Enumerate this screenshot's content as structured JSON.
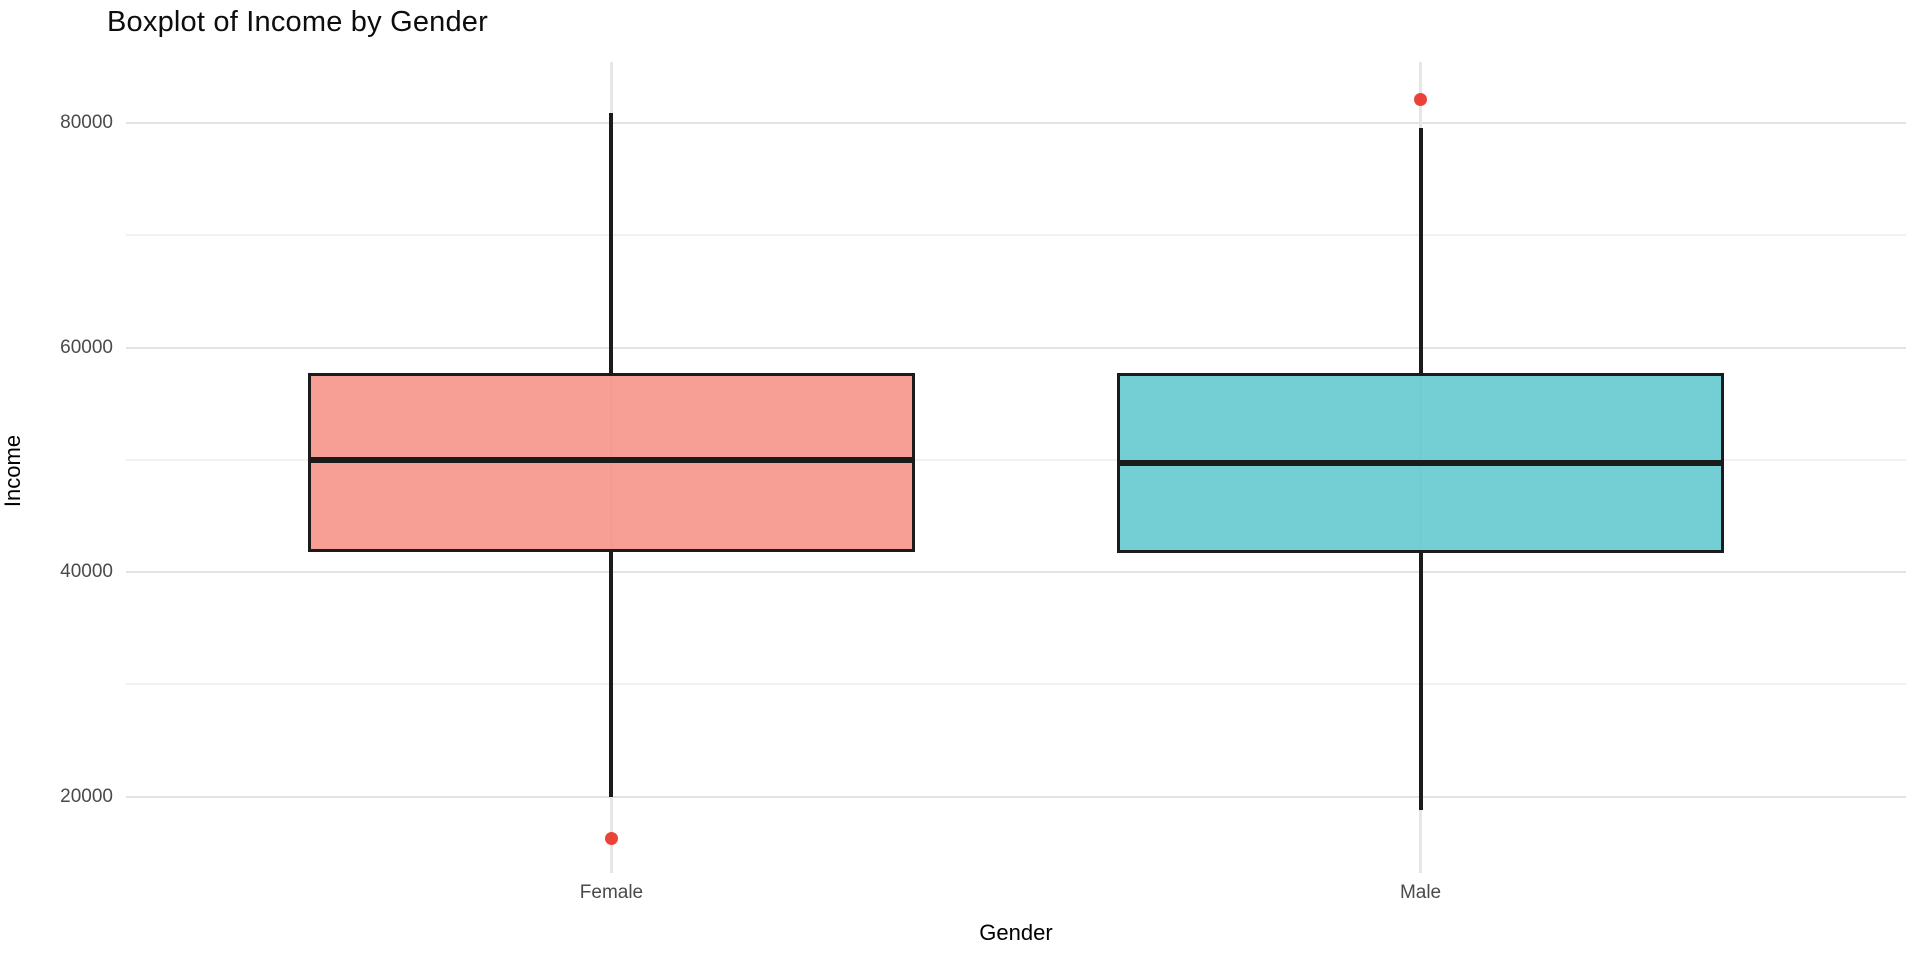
{
  "title": "Boxplot of Income by Gender",
  "chart_data": {
    "type": "boxplot",
    "title": "Boxplot of Income by Gender",
    "xlabel": "Gender",
    "ylabel": "Income",
    "categories": [
      "Female",
      "Male"
    ],
    "series": [
      {
        "name": "Female",
        "lower_whisker": 20000,
        "q1": 41800,
        "median": 50000,
        "q3": 57700,
        "upper_whisker": 80900,
        "outliers": [
          16300
        ],
        "fill": "rgba(246,141,131,0.85)"
      },
      {
        "name": "Male",
        "lower_whisker": 18800,
        "q1": 41700,
        "median": 49700,
        "q3": 57700,
        "upper_whisker": 79600,
        "outliers": [
          82100
        ],
        "fill": "rgba(92,199,204,0.85)"
      }
    ],
    "y_ticks_major": [
      20000,
      40000,
      60000,
      80000
    ],
    "y_ticks_minor": [
      30000,
      50000,
      70000
    ],
    "ylim": [
      13200,
      85450
    ],
    "grid": true,
    "legend": "none",
    "colors": {
      "outlier": "#ea3328",
      "box_border": "#1b1b1b",
      "grid_major": "#e3e3e3",
      "grid_minor": "#f1f1f1",
      "tick_label": "#4a4a4a"
    }
  }
}
